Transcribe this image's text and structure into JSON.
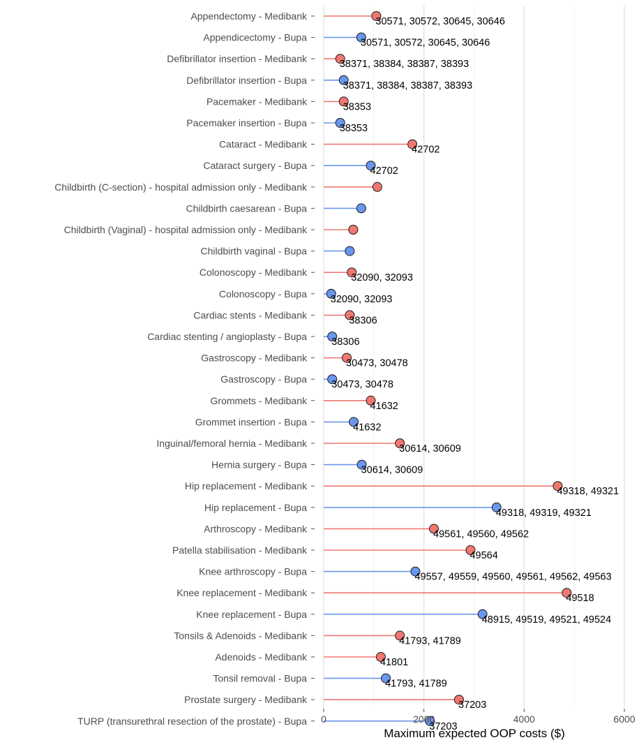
{
  "chart_data": {
    "type": "lollipop",
    "xlabel": "Maximum expected OOP costs ($)",
    "ylabel": "",
    "xlim": [
      0,
      6000
    ],
    "xticks": [
      0,
      2000,
      4000,
      6000
    ],
    "grid": true,
    "legend": "none",
    "colors": {
      "Medibank": "#f07870",
      "Bupa": "#6a96ec"
    },
    "groups": [
      {
        "items": [
          {
            "label": "Appendectomy - Medibank",
            "insurer": "Medibank",
            "value": 1050,
            "codes": "30571, 30572, 30645, 30646"
          },
          {
            "label": "Appendicectomy - Bupa",
            "insurer": "Bupa",
            "value": 750,
            "codes": "30571, 30572, 30645, 30646"
          }
        ]
      },
      {
        "items": [
          {
            "label": "Defibrillator insertion - Medibank",
            "insurer": "Medibank",
            "value": 330,
            "codes": "38371, 38384, 38387, 38393"
          },
          {
            "label": "Defibrillator insertion - Bupa",
            "insurer": "Bupa",
            "value": 400,
            "codes": "38371, 38384, 38387, 38393"
          }
        ]
      },
      {
        "items": [
          {
            "label": "Pacemaker - Medibank",
            "insurer": "Medibank",
            "value": 400,
            "codes": "38353"
          },
          {
            "label": "Pacemaker insertion - Bupa",
            "insurer": "Bupa",
            "value": 330,
            "codes": "38353"
          }
        ]
      },
      {
        "items": [
          {
            "label": "Cataract - Medibank",
            "insurer": "Medibank",
            "value": 1770,
            "codes": "42702"
          },
          {
            "label": "Cataract surgery - Bupa",
            "insurer": "Bupa",
            "value": 940,
            "codes": "42702"
          }
        ]
      },
      {
        "items": [
          {
            "label": "Childbirth (C-section) - hospital admission only - Medibank",
            "insurer": "Medibank",
            "value": 1070,
            "codes": ""
          },
          {
            "label": "Childbirth caesarean - Bupa",
            "insurer": "Bupa",
            "value": 750,
            "codes": ""
          }
        ]
      },
      {
        "items": [
          {
            "label": "Childbirth (Vaginal) - hospital admission only - Medibank",
            "insurer": "Medibank",
            "value": 590,
            "codes": ""
          },
          {
            "label": "Childbirth vaginal - Bupa",
            "insurer": "Bupa",
            "value": 520,
            "codes": ""
          }
        ]
      },
      {
        "items": [
          {
            "label": "Colonoscopy - Medibank",
            "insurer": "Medibank",
            "value": 560,
            "codes": "32090, 32093"
          },
          {
            "label": "Colonoscopy - Bupa",
            "insurer": "Bupa",
            "value": 150,
            "codes": "32090, 32093"
          }
        ]
      },
      {
        "items": [
          {
            "label": "Cardiac stents - Medibank",
            "insurer": "Medibank",
            "value": 520,
            "codes": "38306"
          },
          {
            "label": "Cardiac stenting / angioplasty - Bupa",
            "insurer": "Bupa",
            "value": 170,
            "codes": "38306"
          }
        ]
      },
      {
        "items": [
          {
            "label": "Gastroscopy - Medibank",
            "insurer": "Medibank",
            "value": 460,
            "codes": "30473, 30478"
          },
          {
            "label": "Gastroscopy - Bupa",
            "insurer": "Bupa",
            "value": 170,
            "codes": "30473, 30478"
          }
        ]
      },
      {
        "items": [
          {
            "label": "Grommets - Medibank",
            "insurer": "Medibank",
            "value": 940,
            "codes": "41632"
          },
          {
            "label": "Grommet insertion - Bupa",
            "insurer": "Bupa",
            "value": 600,
            "codes": "41632"
          }
        ]
      },
      {
        "items": [
          {
            "label": "Inguinal/femoral hernia - Medibank",
            "insurer": "Medibank",
            "value": 1520,
            "codes": "30614, 30609"
          },
          {
            "label": "Hernia surgery - Bupa",
            "insurer": "Bupa",
            "value": 760,
            "codes": "30614, 30609"
          }
        ]
      },
      {
        "items": [
          {
            "label": "Hip replacement - Medibank",
            "insurer": "Medibank",
            "value": 4670,
            "codes": "49318, 49321"
          },
          {
            "label": "Hip replacement - Bupa",
            "insurer": "Bupa",
            "value": 3450,
            "codes": "49318, 49319, 49321"
          }
        ]
      },
      {
        "items": [
          {
            "label": "Arthroscopy - Medibank",
            "insurer": "Medibank",
            "value": 2200,
            "codes": "49561, 49560, 49562"
          },
          {
            "label": "Patella stabilisation - Medibank",
            "insurer": "Medibank",
            "value": 2930,
            "codes": "49564"
          },
          {
            "label": "Knee arthroscopy - Bupa",
            "insurer": "Bupa",
            "value": 1830,
            "codes": "49557, 49559, 49560, 49561, 49562, 49563"
          }
        ]
      },
      {
        "items": [
          {
            "label": "Knee replacement - Medibank",
            "insurer": "Medibank",
            "value": 4850,
            "codes": "49518"
          },
          {
            "label": "Knee replacement - Bupa",
            "insurer": "Bupa",
            "value": 3170,
            "codes": "48915, 49519, 49521, 49524"
          }
        ]
      },
      {
        "items": [
          {
            "label": "Tonsils & Adenoids - Medibank",
            "insurer": "Medibank",
            "value": 1520,
            "codes": "41793, 41789"
          },
          {
            "label": "Adenoids - Medibank",
            "insurer": "Medibank",
            "value": 1140,
            "codes": "41801"
          },
          {
            "label": "Tonsil removal - Bupa",
            "insurer": "Bupa",
            "value": 1240,
            "codes": "41793, 41789"
          }
        ]
      },
      {
        "items": [
          {
            "label": "Prostate surgery - Medibank",
            "insurer": "Medibank",
            "value": 2700,
            "codes": "37203"
          },
          {
            "label": "TURP (transurethral resection of the prostate) - Bupa",
            "insurer": "Bupa",
            "value": 2120,
            "codes": "37203"
          }
        ]
      }
    ]
  }
}
